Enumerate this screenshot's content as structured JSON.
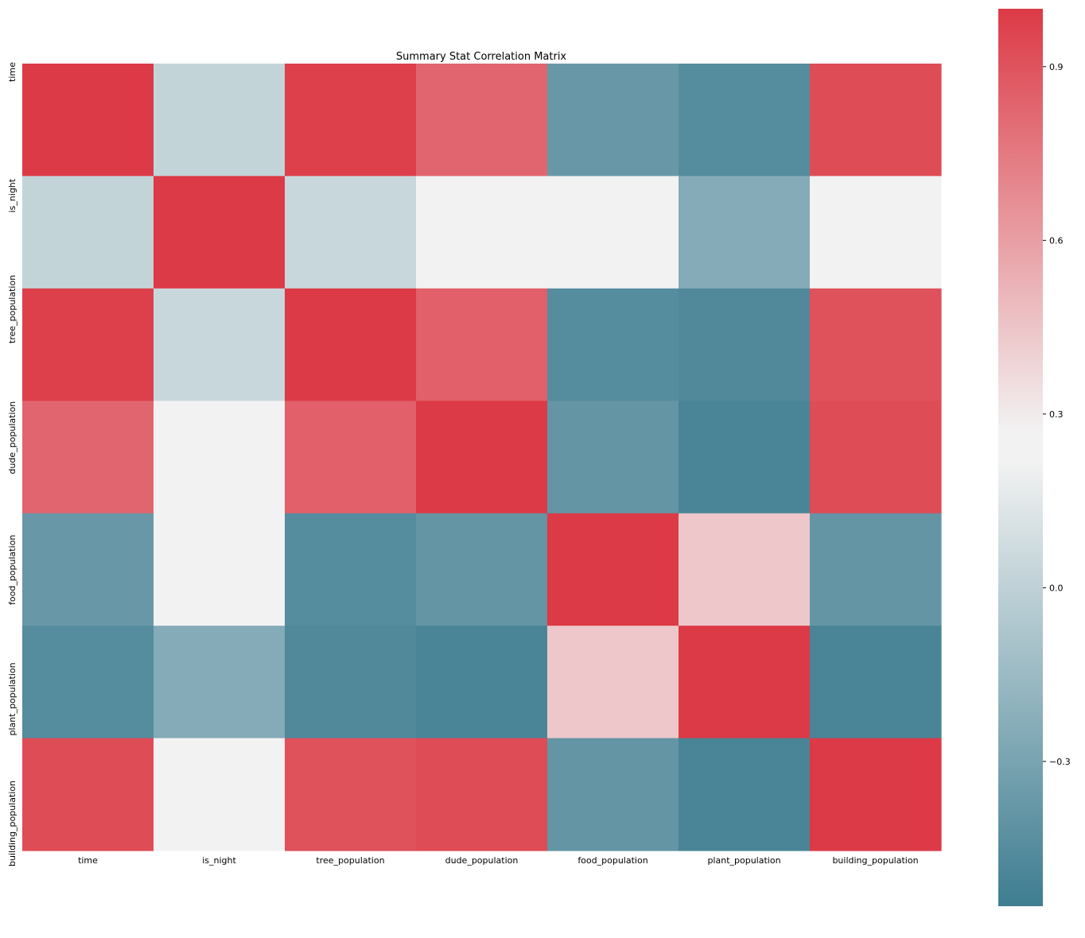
{
  "chart_data": {
    "type": "heatmap",
    "title": "Summary Stat Correlation Matrix",
    "xlabel": "",
    "ylabel": "",
    "labels": [
      "time",
      "is_night",
      "tree_population",
      "dude_population",
      "food_population",
      "plant_population",
      "building_population"
    ],
    "values": [
      [
        1.0,
        0.02,
        0.98,
        0.83,
        -0.37,
        -0.45,
        0.93
      ],
      [
        0.02,
        1.0,
        0.04,
        0.22,
        0.22,
        -0.25,
        0.22
      ],
      [
        0.98,
        0.04,
        1.0,
        0.85,
        -0.45,
        -0.47,
        0.91
      ],
      [
        0.83,
        0.22,
        0.85,
        1.0,
        -0.39,
        -0.5,
        0.93
      ],
      [
        -0.37,
        0.22,
        -0.45,
        -0.39,
        1.0,
        0.44,
        -0.39
      ],
      [
        -0.45,
        -0.25,
        -0.47,
        -0.5,
        0.44,
        1.0,
        -0.5
      ],
      [
        0.93,
        0.22,
        0.91,
        0.93,
        -0.39,
        -0.5,
        1.0
      ]
    ],
    "color_range": [
      -0.55,
      1.0
    ],
    "colorbar_ticks": [
      {
        "value": 0.9,
        "label": "0.9"
      },
      {
        "value": 0.6,
        "label": "0.6"
      },
      {
        "value": 0.3,
        "label": "0.3"
      },
      {
        "value": 0.0,
        "label": "0.0"
      },
      {
        "value": -0.3,
        "label": "−0.3"
      }
    ],
    "colormap": {
      "low": "#3e7d91",
      "mid": "#f2f2f2",
      "high": "#dc3a46",
      "neutral_band": [
        0.22,
        0.27
      ]
    },
    "grid": false,
    "legend": "colorbar-right"
  }
}
